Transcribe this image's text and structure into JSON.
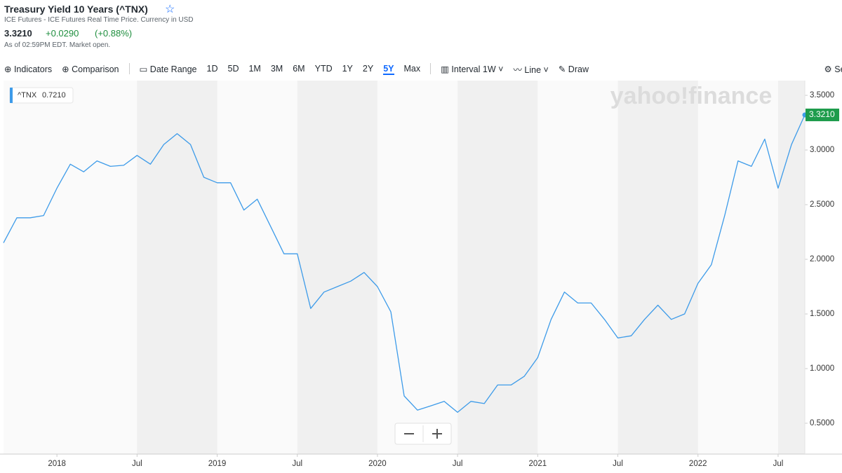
{
  "header": {
    "title": "Treasury Yield 10 Years (^TNX)",
    "subtitle": "ICE Futures - ICE Futures Real Time Price. Currency in USD",
    "price": "3.3210",
    "change": "+0.0290",
    "change_percent": "(+0.88%)",
    "timestamp": "As of 02:59PM EDT. Market open."
  },
  "toolbar": {
    "indicators": "Indicators",
    "comparison": "Comparison",
    "date_range": "Date Range",
    "ranges": [
      "1D",
      "5D",
      "1M",
      "3M",
      "6M",
      "YTD",
      "1Y",
      "2Y",
      "5Y",
      "Max"
    ],
    "selected_range": "5Y",
    "interval_label": "Interval",
    "interval": "1W",
    "chart_type": "Line",
    "draw": "Draw",
    "settings": "Set"
  },
  "chart_data": {
    "type": "line",
    "watermark": "yahoo!finance",
    "legend_value": "0.7210",
    "x": [
      "2017-09",
      "2017-10",
      "2017-11",
      "2017-12",
      "2018-01",
      "2018-02",
      "2018-03",
      "2018-04",
      "2018-05",
      "2018-06",
      "2018-07",
      "2018-08",
      "2018-09",
      "2018-10",
      "2018-11",
      "2018-12",
      "2019-01",
      "2019-02",
      "2019-03",
      "2019-04",
      "2019-05",
      "2019-06",
      "2019-07",
      "2019-08",
      "2019-09",
      "2019-10",
      "2019-11",
      "2019-12",
      "2020-01",
      "2020-02",
      "2020-03",
      "2020-04",
      "2020-05",
      "2020-06",
      "2020-07",
      "2020-08",
      "2020-09",
      "2020-10",
      "2020-11",
      "2020-12",
      "2021-01",
      "2021-02",
      "2021-03",
      "2021-04",
      "2021-05",
      "2021-06",
      "2021-07",
      "2021-08",
      "2021-09",
      "2021-10",
      "2021-11",
      "2021-12",
      "2022-01",
      "2022-02",
      "2022-03",
      "2022-04",
      "2022-05",
      "2022-06",
      "2022-07",
      "2022-08",
      "2022-09"
    ],
    "series": [
      {
        "name": "^TNX",
        "color": "#3d9be9",
        "values": [
          2.15,
          2.38,
          2.38,
          2.4,
          2.65,
          2.87,
          2.8,
          2.9,
          2.85,
          2.86,
          2.95,
          2.87,
          3.05,
          3.15,
          3.05,
          2.75,
          2.7,
          2.7,
          2.45,
          2.55,
          2.3,
          2.05,
          2.05,
          1.55,
          1.7,
          1.75,
          1.8,
          1.88,
          1.75,
          1.52,
          0.75,
          0.62,
          0.66,
          0.7,
          0.6,
          0.7,
          0.68,
          0.85,
          0.85,
          0.93,
          1.1,
          1.45,
          1.7,
          1.6,
          1.6,
          1.45,
          1.28,
          1.3,
          1.45,
          1.58,
          1.45,
          1.5,
          1.78,
          1.95,
          2.4,
          2.9,
          2.85,
          3.1,
          2.65,
          3.05,
          3.321
        ],
        "value_labels": [
          null,
          null,
          null,
          null,
          null,
          null,
          null,
          null,
          null,
          null,
          null,
          null,
          null,
          null,
          null,
          null,
          null,
          null,
          null,
          null,
          null,
          null,
          null,
          null,
          null,
          null,
          null,
          null,
          null,
          null,
          null,
          null,
          null,
          null,
          null,
          null,
          null,
          null,
          null,
          null,
          null,
          null,
          null,
          null,
          null,
          null,
          null,
          null,
          null,
          null,
          null,
          null,
          null,
          null,
          null,
          null,
          null,
          null,
          null,
          null,
          "3.3210"
        ]
      }
    ],
    "xlim": [
      "2017-09",
      "2022-09"
    ],
    "xticks": [
      {
        "value": "2018-01",
        "label": "2018"
      },
      {
        "value": "2018-07",
        "label": "Jul"
      },
      {
        "value": "2019-01",
        "label": "2019"
      },
      {
        "value": "2019-07",
        "label": "Jul"
      },
      {
        "value": "2020-01",
        "label": "2020"
      },
      {
        "value": "2020-07",
        "label": "Jul"
      },
      {
        "value": "2021-01",
        "label": "2021"
      },
      {
        "value": "2021-07",
        "label": "Jul"
      },
      {
        "value": "2022-01",
        "label": "2022"
      },
      {
        "value": "2022-07",
        "label": "Jul"
      }
    ],
    "ylim": [
      0.218,
      3.635
    ],
    "yticks": [
      {
        "value": 0.5,
        "label": "0.5000"
      },
      {
        "value": 1,
        "label": "1.0000"
      },
      {
        "value": 1.5,
        "label": "1.5000"
      },
      {
        "value": 2,
        "label": "2.0000"
      },
      {
        "value": 2.5,
        "label": "2.5000"
      },
      {
        "value": 3,
        "label": "3.0000"
      },
      {
        "value": 3.5,
        "label": "3.5000"
      }
    ],
    "last_label_color": "#1e9c4c"
  }
}
